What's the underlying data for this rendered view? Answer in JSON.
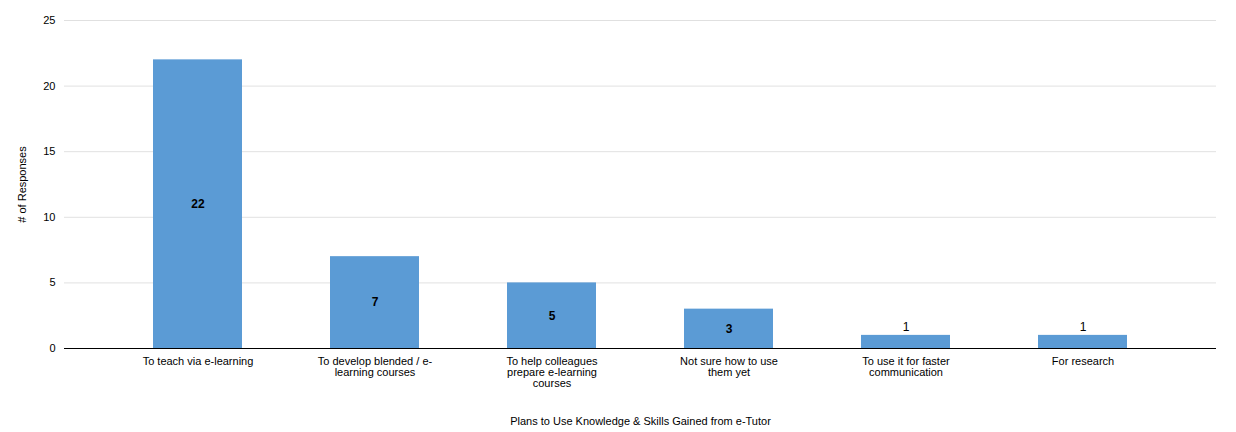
{
  "chart_data": {
    "type": "bar",
    "categories": [
      "To teach via e-learning",
      "To develop blended / e-\nlearning courses",
      "To help colleagues\nprepare e-learning\ncourses",
      "Not sure how to use\nthem yet",
      "To use it for faster\ncommunication",
      "For research"
    ],
    "values": [
      22,
      7,
      5,
      3,
      1,
      1
    ],
    "color": "#5b9bd5",
    "xlabel": "Plans to Use Knowledge & Skills Gained from e-Tutor",
    "ylabel": "# of Responses",
    "ylim": [
      0,
      25
    ],
    "yticks": [
      0,
      5,
      10,
      15,
      20,
      25
    ],
    "grid": true,
    "data_labels": true
  }
}
